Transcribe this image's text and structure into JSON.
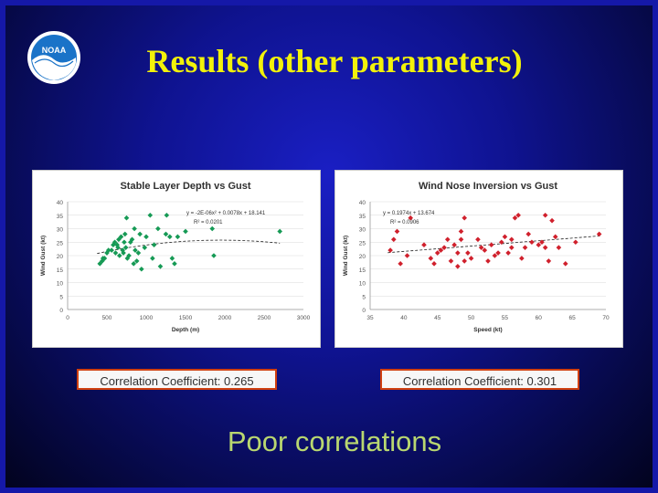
{
  "slide": {
    "title": "Results (other parameters)",
    "conclusion": "Poor correlations",
    "logo_text": "NOAA",
    "colors": {
      "title": "#f2f20a",
      "conclusion": "#b9d770",
      "border": "#1518a8",
      "corr_border": "#d04010"
    }
  },
  "chart_data": [
    {
      "type": "scatter",
      "title": "Stable Layer Depth vs Gust",
      "xlabel": "Depth (m)",
      "ylabel": "Wind Gust (kt)",
      "xlim": [
        0,
        3000
      ],
      "ylim": [
        0,
        40
      ],
      "xticks": [
        0,
        500,
        1000,
        1500,
        2000,
        2500,
        3000
      ],
      "yticks": [
        0,
        5,
        10,
        15,
        20,
        25,
        30,
        35,
        40
      ],
      "grid": true,
      "color": "#169a55",
      "marker": "diamond",
      "equation": "y = -2E-06x² + 0.0078x + 18.141",
      "r2": "R² = 0.0201",
      "trend_quadratic": [
        -2e-06,
        0.0078,
        18.141
      ],
      "x": [
        410,
        440,
        450,
        470,
        500,
        520,
        560,
        580,
        600,
        610,
        630,
        640,
        650,
        660,
        680,
        700,
        710,
        720,
        730,
        740,
        750,
        760,
        780,
        800,
        820,
        840,
        850,
        860,
        880,
        900,
        920,
        940,
        980,
        1000,
        1050,
        1080,
        1100,
        1150,
        1180,
        1250,
        1260,
        1300,
        1330,
        1360,
        1400,
        1500,
        1840,
        1860,
        2700
      ],
      "y": [
        17,
        18,
        19,
        19,
        21,
        22,
        22,
        24,
        25,
        21,
        24,
        23,
        26,
        20,
        27,
        22,
        21,
        25,
        28,
        23,
        34,
        19,
        20,
        25,
        26,
        17,
        30,
        22,
        18,
        21,
        28,
        15,
        23,
        27,
        35,
        19,
        24,
        30,
        16,
        28,
        35,
        27,
        19,
        17,
        27,
        29,
        30,
        20,
        29
      ],
      "correlation": "Correlation Coefficient: 0.265"
    },
    {
      "type": "scatter",
      "title": "Wind Nose Inversion vs Gust",
      "xlabel": "Speed (kt)",
      "ylabel": "Wind Gust (kt)",
      "xlim": [
        35,
        70
      ],
      "ylim": [
        0,
        40
      ],
      "xticks": [
        35,
        40,
        45,
        50,
        55,
        60,
        65,
        70
      ],
      "yticks": [
        0,
        5,
        10,
        15,
        20,
        25,
        30,
        35,
        40
      ],
      "grid": true,
      "color": "#d0202c",
      "marker": "diamond",
      "equation": "y = 0.1974x + 13.674",
      "r2": "R² = 0.0906",
      "trend_linear": [
        0.1974,
        13.674
      ],
      "x": [
        38,
        38.5,
        39,
        39.5,
        40.5,
        41,
        43,
        44,
        44.5,
        45,
        45.5,
        46,
        46.5,
        47,
        47.5,
        48,
        48,
        48.5,
        48.5,
        49,
        49,
        49.5,
        50,
        51,
        51.5,
        52,
        52.5,
        53,
        53.5,
        54,
        54.5,
        55,
        55.5,
        56,
        56,
        56.5,
        57,
        57.5,
        58,
        58.5,
        59,
        60,
        60.5,
        61,
        61,
        61.5,
        62,
        62.5,
        63,
        64,
        65.5,
        69
      ],
      "y": [
        22,
        26,
        29,
        17,
        20,
        34,
        24,
        19,
        17,
        21,
        22,
        23,
        26,
        18,
        24,
        16,
        21,
        26,
        29,
        18,
        34,
        21,
        19,
        26,
        23,
        22,
        18,
        24,
        20,
        21,
        25,
        27,
        21,
        26,
        23,
        34,
        35,
        19,
        23,
        28,
        25,
        24,
        25,
        23,
        35,
        18,
        33,
        27,
        23,
        17,
        25,
        28
      ],
      "correlation": "Correlation Coefficient: 0.301"
    }
  ]
}
